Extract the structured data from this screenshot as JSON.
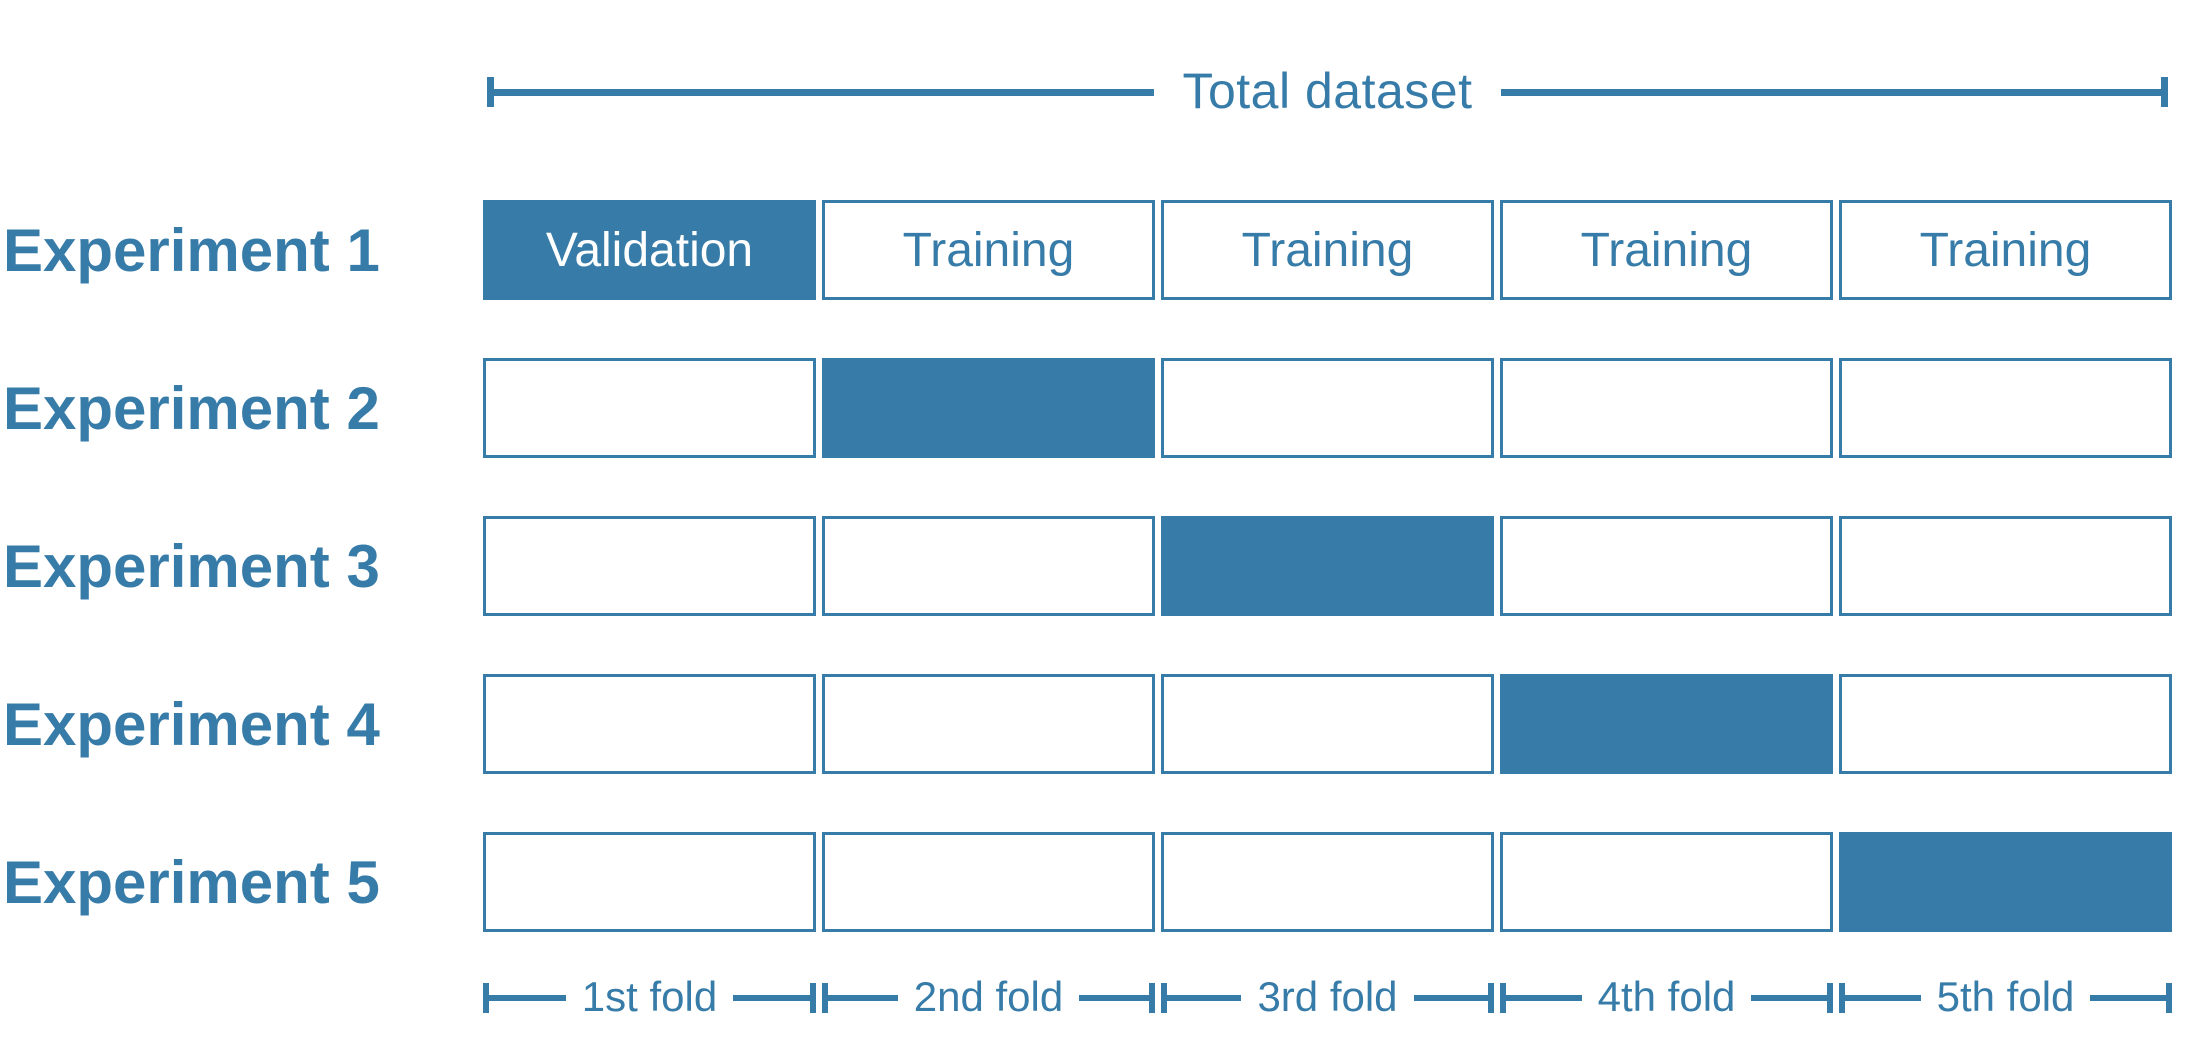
{
  "title": "Total dataset",
  "colors": {
    "accent": "#377CA8",
    "background": "#FFFFFF",
    "selected_text": "#FFFFFF"
  },
  "experiments": [
    {
      "label": "Experiment 1",
      "cells": [
        {
          "state": "validation",
          "text": "Validation"
        },
        {
          "state": "training",
          "text": "Training"
        },
        {
          "state": "training",
          "text": "Training"
        },
        {
          "state": "training",
          "text": "Training"
        },
        {
          "state": "training",
          "text": "Training"
        }
      ]
    },
    {
      "label": "Experiment 2",
      "cells": [
        {
          "state": "empty",
          "text": ""
        },
        {
          "state": "filled",
          "text": ""
        },
        {
          "state": "empty",
          "text": ""
        },
        {
          "state": "empty",
          "text": ""
        },
        {
          "state": "empty",
          "text": ""
        }
      ]
    },
    {
      "label": "Experiment 3",
      "cells": [
        {
          "state": "empty",
          "text": ""
        },
        {
          "state": "empty",
          "text": ""
        },
        {
          "state": "filled",
          "text": ""
        },
        {
          "state": "empty",
          "text": ""
        },
        {
          "state": "empty",
          "text": ""
        }
      ]
    },
    {
      "label": "Experiment 4",
      "cells": [
        {
          "state": "empty",
          "text": ""
        },
        {
          "state": "empty",
          "text": ""
        },
        {
          "state": "empty",
          "text": ""
        },
        {
          "state": "filled",
          "text": ""
        },
        {
          "state": "empty",
          "text": ""
        }
      ]
    },
    {
      "label": "Experiment 5",
      "cells": [
        {
          "state": "empty",
          "text": ""
        },
        {
          "state": "empty",
          "text": ""
        },
        {
          "state": "empty",
          "text": ""
        },
        {
          "state": "empty",
          "text": ""
        },
        {
          "state": "filled",
          "text": ""
        }
      ]
    }
  ],
  "folds": [
    "1st fold",
    "2nd fold",
    "3rd fold",
    "4th fold",
    "5th fold"
  ]
}
